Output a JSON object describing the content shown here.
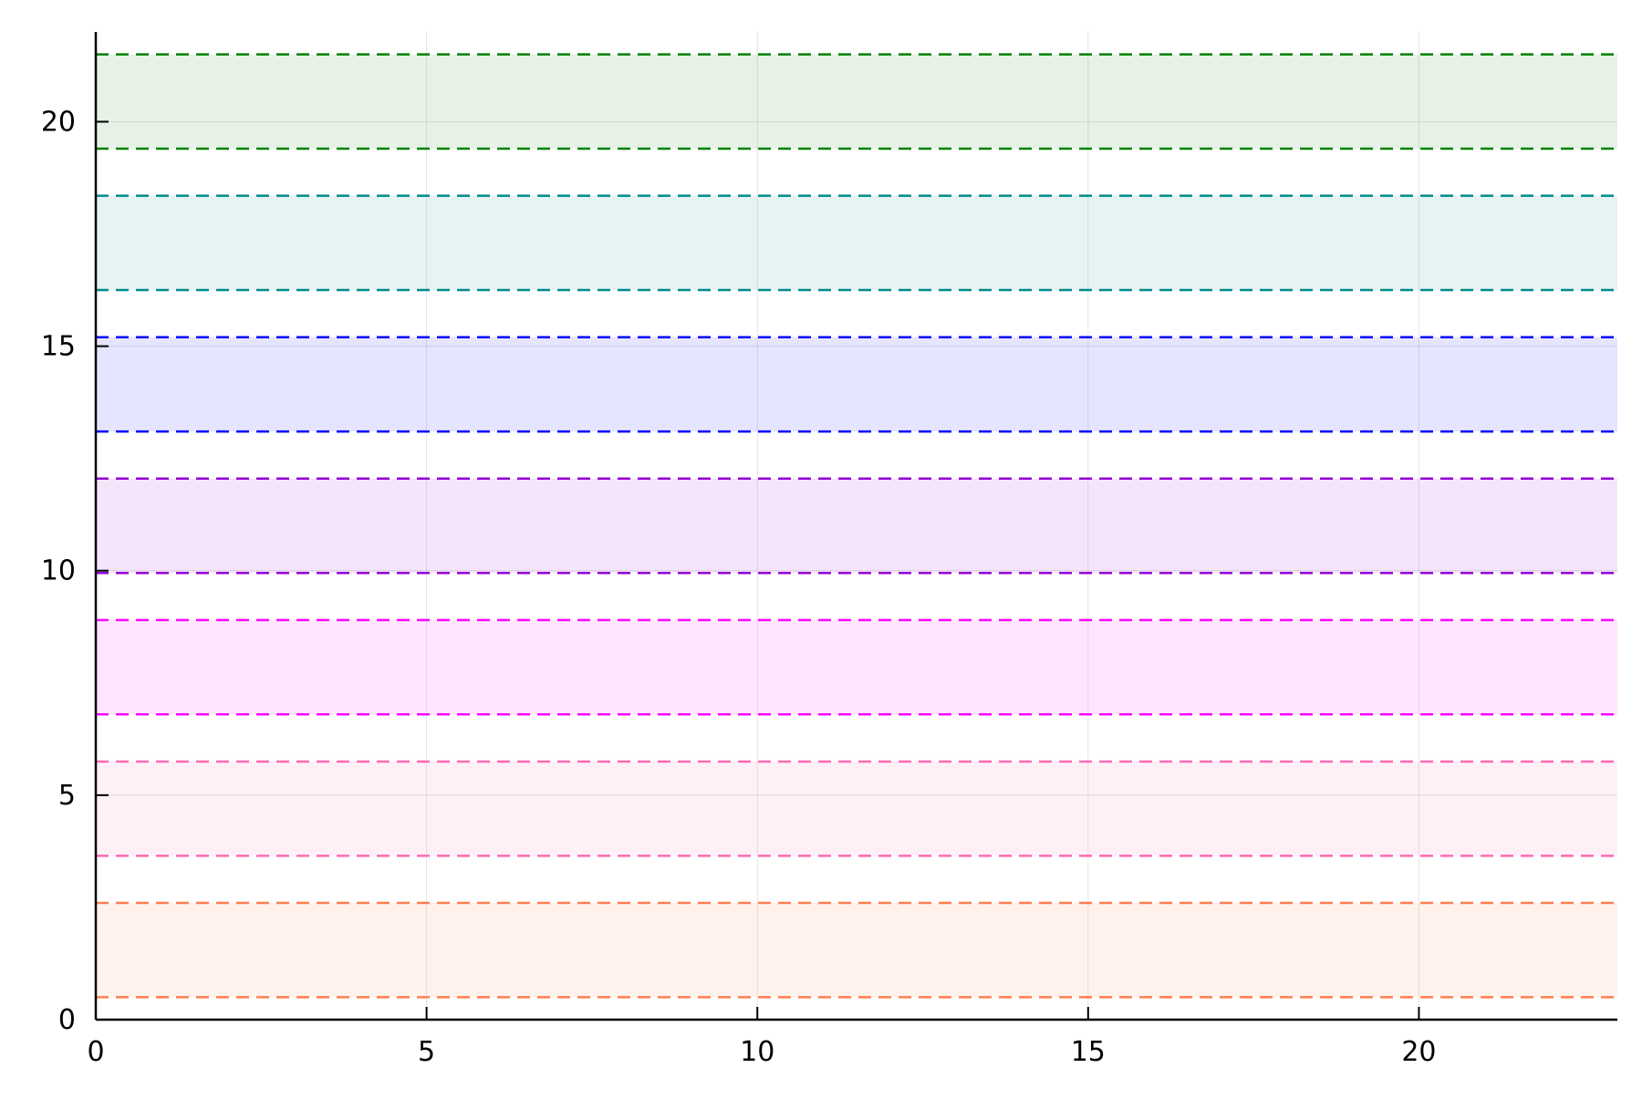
{
  "chart_data": {
    "type": "area",
    "title": "",
    "xlabel": "",
    "ylabel": "",
    "xlim": [
      0,
      23
    ],
    "ylim": [
      0,
      22
    ],
    "xticks": [
      0,
      5,
      10,
      15,
      20
    ],
    "yticks": [
      0,
      5,
      10,
      15,
      20
    ],
    "xtick_labels": [
      "0",
      "5",
      "10",
      "15",
      "20"
    ],
    "ytick_labels": [
      "0",
      "5",
      "10",
      "15",
      "20"
    ],
    "grid": true,
    "legend": "none",
    "series": [
      {
        "lower": 0.5,
        "upper": 2.6,
        "color": "#ff7f50"
      },
      {
        "lower": 3.65,
        "upper": 5.75,
        "color": "#ff69b4"
      },
      {
        "lower": 6.8,
        "upper": 8.9,
        "color": "#ff00ff"
      },
      {
        "lower": 9.95,
        "upper": 12.05,
        "color": "#9400d3"
      },
      {
        "lower": 13.1,
        "upper": 15.2,
        "color": "#0000ff"
      },
      {
        "lower": 16.25,
        "upper": 18.35,
        "color": "#008b8b"
      },
      {
        "lower": 19.4,
        "upper": 21.5,
        "color": "#008000"
      }
    ]
  }
}
